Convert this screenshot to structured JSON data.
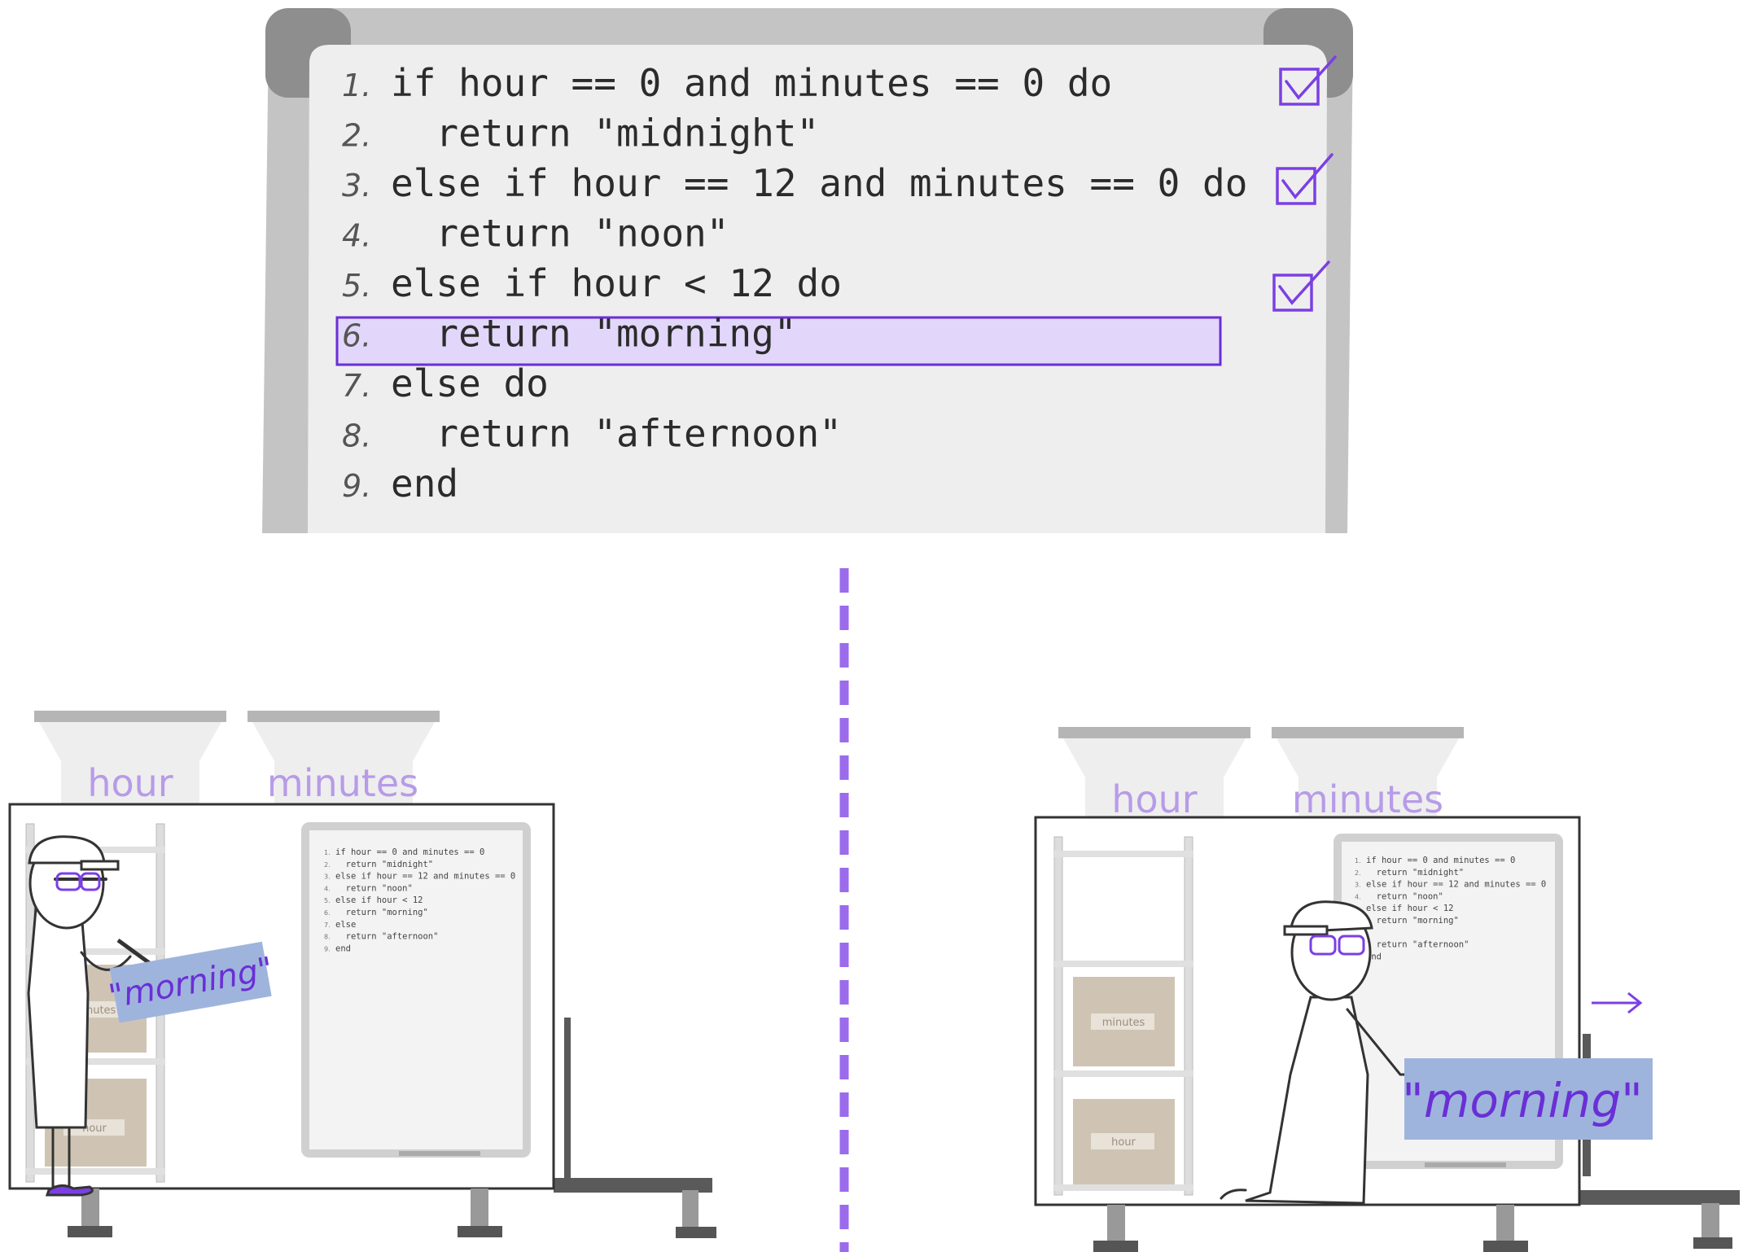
{
  "whiteboard": {
    "line_numbers": [
      "1.",
      "2.",
      "3.",
      "4.",
      "5.",
      "6.",
      "7.",
      "8.",
      "9."
    ],
    "lines": [
      "if hour == 0 and minutes == 0 do",
      "  return \"midnight\"",
      "else if hour == 12 and minutes == 0 do",
      "  return \"noon\"",
      "else if hour < 12 do",
      "  return \"morning\"",
      "else do",
      "  return \"afternoon\"",
      "end"
    ],
    "highlighted_line": 6,
    "checked_lines": [
      1,
      3,
      5
    ]
  },
  "machine_left": {
    "hopper_labels": [
      "hour",
      "minutes"
    ],
    "mini_board_lines": [
      "if hour == 0 and minutes == 0",
      "  return \"midnight\"",
      "else if hour == 12 and minutes == 0",
      "  return \"noon\"",
      "else if hour < 12",
      "  return \"morning\"",
      "else",
      "  return \"afternoon\"",
      "end"
    ],
    "mini_board_numbers": [
      "1.",
      "2.",
      "3.",
      "4.",
      "5.",
      "6.",
      "7.",
      "8.",
      "9."
    ],
    "box_labels": [
      "minutes",
      "hour"
    ],
    "card_text": "\"morning\""
  },
  "machine_right": {
    "hopper_labels": [
      "hour",
      "minutes"
    ],
    "mini_board_lines": [
      "if hour == 0 and minutes == 0",
      "  return \"midnight\"",
      "else if hour == 12 and minutes == 0",
      "  return \"noon\"",
      "else if hour < 12",
      "  return \"morning\"",
      "",
      "  return \"afternoon\"",
      "end"
    ],
    "mini_board_numbers": [
      "1.",
      "2.",
      "3.",
      "4.",
      "",
      "",
      "",
      "",
      ""
    ],
    "box_labels": [
      "minutes",
      "hour"
    ],
    "card_text": "\"morning\""
  },
  "colors": {
    "accent": "#7b3fe4",
    "highlight_fill": "#e2d7fb",
    "board_frame": "#bdbdbd",
    "board_surface": "#efefef",
    "card": "#9fb4dc",
    "box": "#cfc4b4",
    "hopper_label": "#b79be8"
  }
}
